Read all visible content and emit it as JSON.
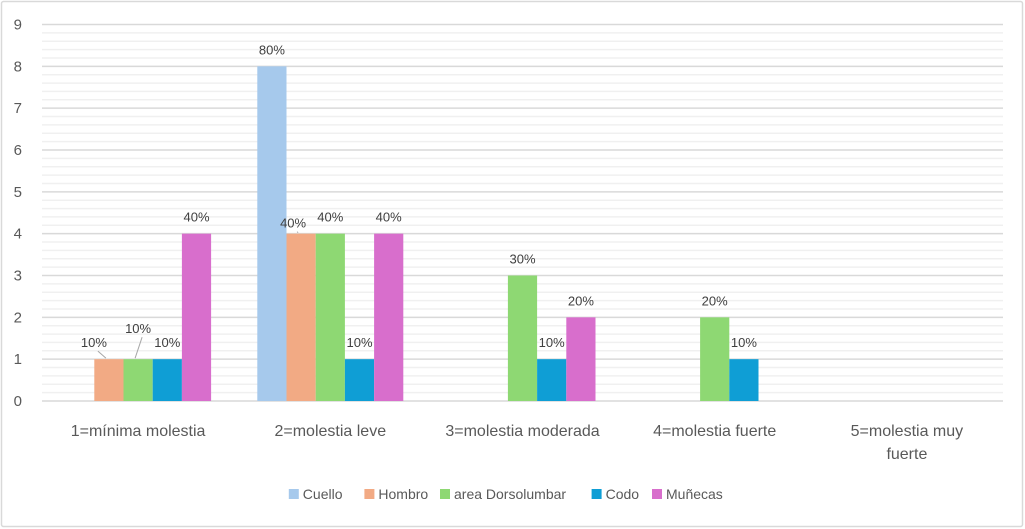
{
  "chart_data": {
    "type": "bar",
    "title": "",
    "xlabel": "",
    "ylabel": "",
    "ylim": [
      0,
      9
    ],
    "grid": {
      "major_step": 1,
      "minor_step": 0.2
    },
    "legend_position": "bottom",
    "categories": [
      "1=mínima molestia",
      "2=molestia leve",
      "3=molestia moderada",
      "4=molestia fuerte",
      "5=molestia muy fuerte"
    ],
    "category_lines": [
      [
        "1=mínima molestia"
      ],
      [
        "2=molestia leve"
      ],
      [
        "3=molestia moderada"
      ],
      [
        "4=molestia fuerte"
      ],
      [
        "5=molestia muy",
        "fuerte"
      ]
    ],
    "y_ticks": [
      "0",
      "1",
      "2",
      "3",
      "4",
      "5",
      "6",
      "7",
      "8",
      "9"
    ],
    "series": [
      {
        "name": "Cuello",
        "color": "#A6C9EC",
        "values": [
          0,
          8,
          0,
          0,
          0
        ],
        "labels": [
          "",
          "80%",
          "",
          "",
          ""
        ]
      },
      {
        "name": "Hombro",
        "color": "#F2AA84",
        "values": [
          1,
          4,
          0,
          0,
          0
        ],
        "labels": [
          "10%",
          "40%",
          "",
          "",
          ""
        ]
      },
      {
        "name": "area Dorsolumbar",
        "color": "#8ED873",
        "values": [
          1,
          4,
          3,
          2,
          0
        ],
        "labels": [
          "10%",
          "40%",
          "30%",
          "20%",
          ""
        ]
      },
      {
        "name": "Codo",
        "color": "#0F9ED5",
        "values": [
          1,
          1,
          1,
          1,
          0
        ],
        "labels": [
          "10%",
          "10%",
          "10%",
          "10%",
          ""
        ]
      },
      {
        "name": "Muñecas",
        "color": "#D86ECC",
        "values": [
          4,
          4,
          2,
          0,
          0
        ],
        "labels": [
          "40%",
          "40%",
          "20%",
          "",
          ""
        ]
      }
    ]
  }
}
